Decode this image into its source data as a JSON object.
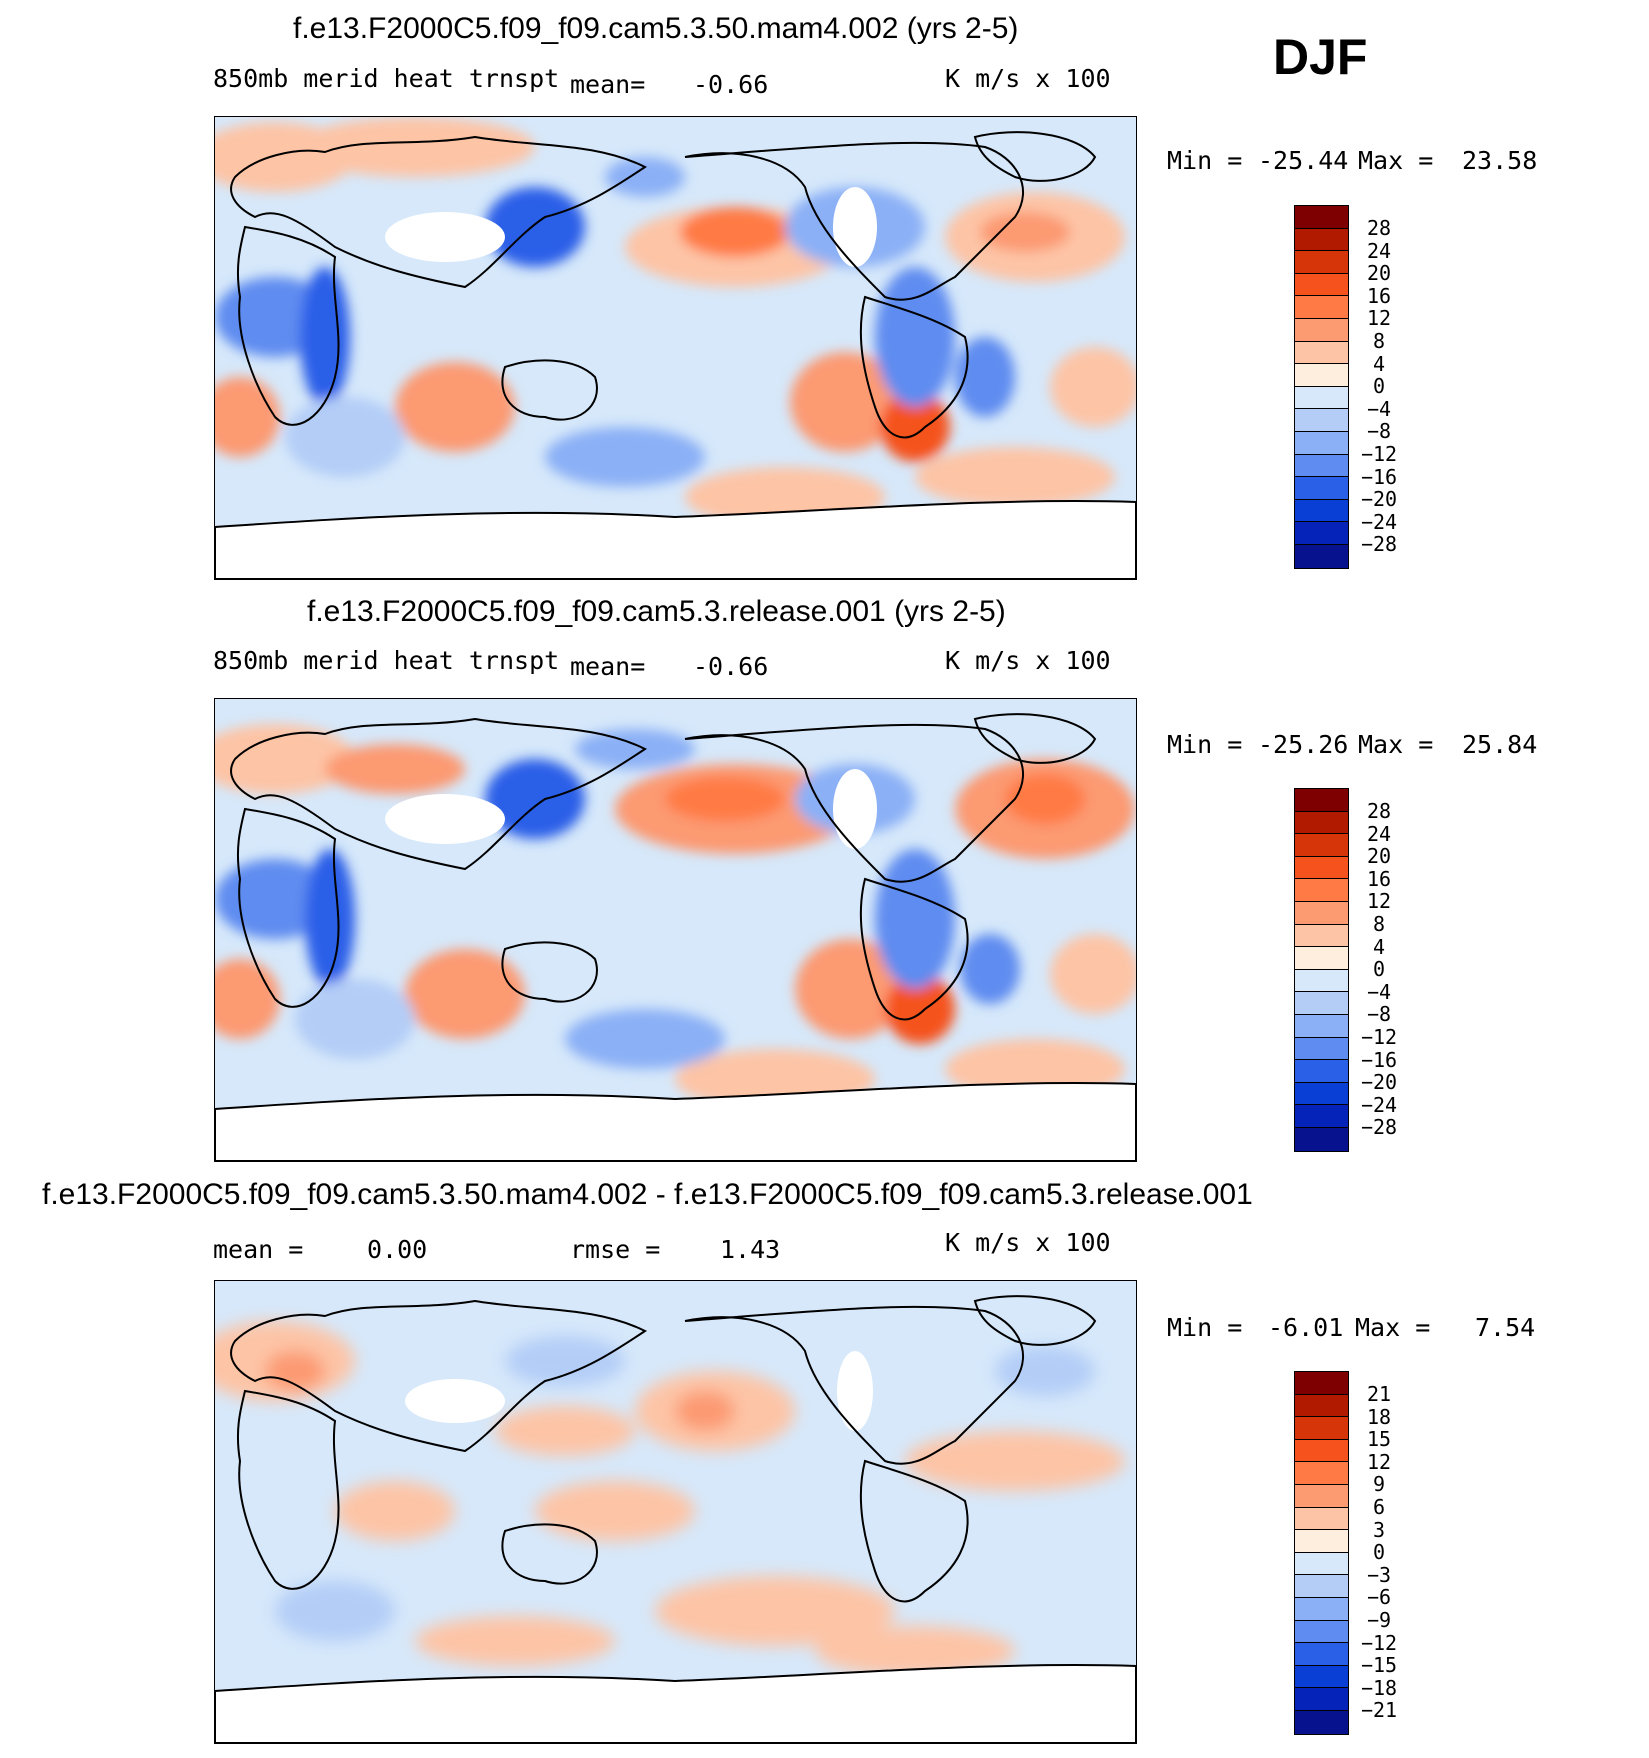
{
  "season": "DJF",
  "panels": [
    {
      "title": "f.e13.F2000C5.f09_f09.cam5.3.50.mam4.002 (yrs 2-5)",
      "left_label": "850mb merid heat trnspt",
      "stat_label": "mean=",
      "stat_value": "-0.66",
      "stat2_label": "",
      "stat2_value": "",
      "units": "K m/s x 100",
      "min_label": "Min =",
      "min_value": "-25.44",
      "max_label": "Max =",
      "max_value": "23.58",
      "colorbar_ticks": [
        "28",
        "24",
        "20",
        "16",
        "12",
        "8",
        "4",
        "0",
        "-4",
        "-8",
        "-12",
        "-16",
        "-20",
        "-24",
        "-28"
      ]
    },
    {
      "title": "f.e13.F2000C5.f09_f09.cam5.3.release.001 (yrs 2-5)",
      "left_label": "850mb merid heat trnspt",
      "stat_label": "mean=",
      "stat_value": "-0.66",
      "stat2_label": "",
      "stat2_value": "",
      "units": "K m/s x 100",
      "min_label": "Min =",
      "min_value": "-25.26",
      "max_label": "Max =",
      "max_value": "25.84",
      "colorbar_ticks": [
        "28",
        "24",
        "20",
        "16",
        "12",
        "8",
        "4",
        "0",
        "-4",
        "-8",
        "-12",
        "-16",
        "-20",
        "-24",
        "-28"
      ]
    },
    {
      "title": "f.e13.F2000C5.f09_f09.cam5.3.50.mam4.002 - f.e13.F2000C5.f09_f09.cam5.3.release.001",
      "left_label": "",
      "stat_label": "mean =",
      "stat_value": "0.00",
      "stat2_label": "rmse =",
      "stat2_value": "1.43",
      "units": "K m/s x 100",
      "min_label": "Min =",
      "min_value": "-6.01",
      "max_label": "Max =",
      "max_value": "7.54",
      "colorbar_ticks": [
        "21",
        "18",
        "15",
        "12",
        "9",
        "6",
        "3",
        "0",
        "-3",
        "-6",
        "-9",
        "-12",
        "-15",
        "-18",
        "-21"
      ]
    }
  ],
  "colorbar_colors": [
    "#7f0000",
    "#b21a00",
    "#d6350a",
    "#f5521d",
    "#ff7a45",
    "#fc9a72",
    "#fdc4a6",
    "#fdeede",
    "#d6e8fa",
    "#b3cdf7",
    "#8bb0f6",
    "#5e8cf0",
    "#2a5fe8",
    "#0a3fd6",
    "#0523b8",
    "#07138e"
  ],
  "legend": {
    "positive_color": "#f06a3c",
    "negative_color": "#2f62e6"
  }
}
